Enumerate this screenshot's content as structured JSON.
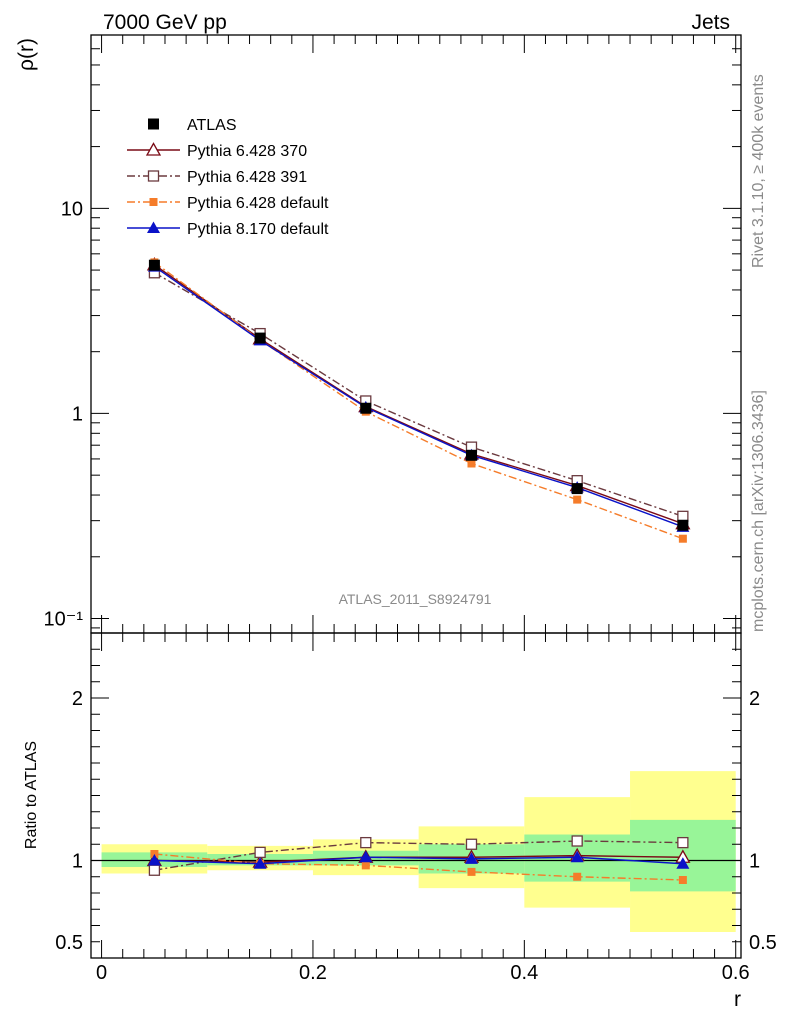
{
  "header": {
    "left": "7000 GeV pp",
    "right": "Jets"
  },
  "side_text": {
    "upper": "Rivet 3.1.10, ≥ 400k events",
    "lower": "mcplots.cern.ch [arXiv:1306.3436]"
  },
  "colors": {
    "atlas": "#000000",
    "p370": "#7a0b16",
    "p391": "#6b3a3f",
    "p6def": "#f57c2a",
    "p8def": "#0a12c8",
    "band_outer": "#ffff8f",
    "band_inner": "#98f598"
  },
  "chart_data": [
    {
      "type": "line",
      "panel": "main",
      "ylabel": "ρ(r)",
      "yscale": "log",
      "ylim": [
        0.085,
        70
      ],
      "xlim": [
        -0.01,
        0.605
      ],
      "y_ticks": [
        {
          "value": 10,
          "label": "10"
        },
        {
          "value": 1,
          "label": "1"
        },
        {
          "value": 0.1,
          "label": "10⁻¹"
        }
      ],
      "watermark": "ATLAS_2011_S8924791",
      "legend_position": "top-left",
      "x": [
        0.05,
        0.15,
        0.25,
        0.35,
        0.45,
        0.55
      ],
      "series": [
        {
          "name": "ATLAS",
          "key": "atlas",
          "marker": "square-filled",
          "line": "none",
          "values": [
            5.28,
            2.33,
            1.06,
            0.625,
            0.43,
            0.285
          ]
        },
        {
          "name": "Pythia 6.428 370",
          "key": "p370",
          "marker": "triangle-open",
          "line": "solid",
          "values": [
            5.3,
            2.31,
            1.08,
            0.635,
            0.445,
            0.29
          ]
        },
        {
          "name": "Pythia 6.428 391",
          "key": "p391",
          "marker": "square-open",
          "line": "dashdot",
          "values": [
            4.85,
            2.45,
            1.15,
            0.685,
            0.47,
            0.315
          ]
        },
        {
          "name": "Pythia 6.428 default",
          "key": "p6def",
          "marker": "square-filled-small",
          "line": "dashdot",
          "values": [
            5.45,
            2.28,
            1.02,
            0.57,
            0.38,
            0.245
          ]
        },
        {
          "name": "Pythia 8.170 default",
          "key": "p8def",
          "marker": "triangle-filled",
          "line": "solid",
          "values": [
            5.2,
            2.27,
            1.07,
            0.625,
            0.435,
            0.28
          ]
        }
      ]
    },
    {
      "type": "line",
      "panel": "ratio",
      "ylabel": "Ratio to ATLAS",
      "xlabel": "r",
      "ylim": [
        0.4,
        2.4
      ],
      "xlim": [
        -0.01,
        0.605
      ],
      "y_ticks": [
        {
          "value": 2,
          "label": "2"
        },
        {
          "value": 1,
          "label": "1"
        },
        {
          "value": 0.5,
          "label": "0.5"
        }
      ],
      "x_ticks": [
        {
          "value": 0,
          "label": "0"
        },
        {
          "value": 0.2,
          "label": "0.2"
        },
        {
          "value": 0.4,
          "label": "0.4"
        },
        {
          "value": 0.6,
          "label": "0.6"
        }
      ],
      "bins": [
        {
          "xlo": 0.0,
          "xhi": 0.1,
          "inner": [
            0.96,
            1.05
          ],
          "outer": [
            0.92,
            1.1
          ]
        },
        {
          "xlo": 0.1,
          "xhi": 0.2,
          "inner": [
            0.97,
            1.04
          ],
          "outer": [
            0.94,
            1.09
          ]
        },
        {
          "xlo": 0.2,
          "xhi": 0.3,
          "inner": [
            0.97,
            1.06
          ],
          "outer": [
            0.91,
            1.13
          ]
        },
        {
          "xlo": 0.3,
          "xhi": 0.4,
          "inner": [
            0.92,
            1.1
          ],
          "outer": [
            0.83,
            1.21
          ]
        },
        {
          "xlo": 0.4,
          "xhi": 0.5,
          "inner": [
            0.87,
            1.16
          ],
          "outer": [
            0.71,
            1.39
          ]
        },
        {
          "xlo": 0.5,
          "xhi": 0.6,
          "inner": [
            0.81,
            1.25
          ],
          "outer": [
            0.56,
            1.55
          ]
        }
      ],
      "x": [
        0.05,
        0.15,
        0.25,
        0.35,
        0.45,
        0.55
      ],
      "series": [
        {
          "name": "Pythia 6.428 370",
          "key": "p370",
          "marker": "triangle-open",
          "line": "solid",
          "values": [
            1.0,
            0.99,
            1.02,
            1.02,
            1.03,
            1.02
          ]
        },
        {
          "name": "Pythia 6.428 391",
          "key": "p391",
          "marker": "square-open",
          "line": "dashdot",
          "values": [
            0.94,
            1.05,
            1.11,
            1.1,
            1.12,
            1.11
          ]
        },
        {
          "name": "Pythia 6.428 default",
          "key": "p6def",
          "marker": "square-filled-small",
          "line": "dashdot",
          "values": [
            1.04,
            0.98,
            0.97,
            0.93,
            0.9,
            0.88
          ]
        },
        {
          "name": "Pythia 8.170 default",
          "key": "p8def",
          "marker": "triangle-filled",
          "line": "solid",
          "values": [
            1.0,
            0.98,
            1.02,
            1.01,
            1.02,
            0.98
          ]
        }
      ]
    }
  ]
}
